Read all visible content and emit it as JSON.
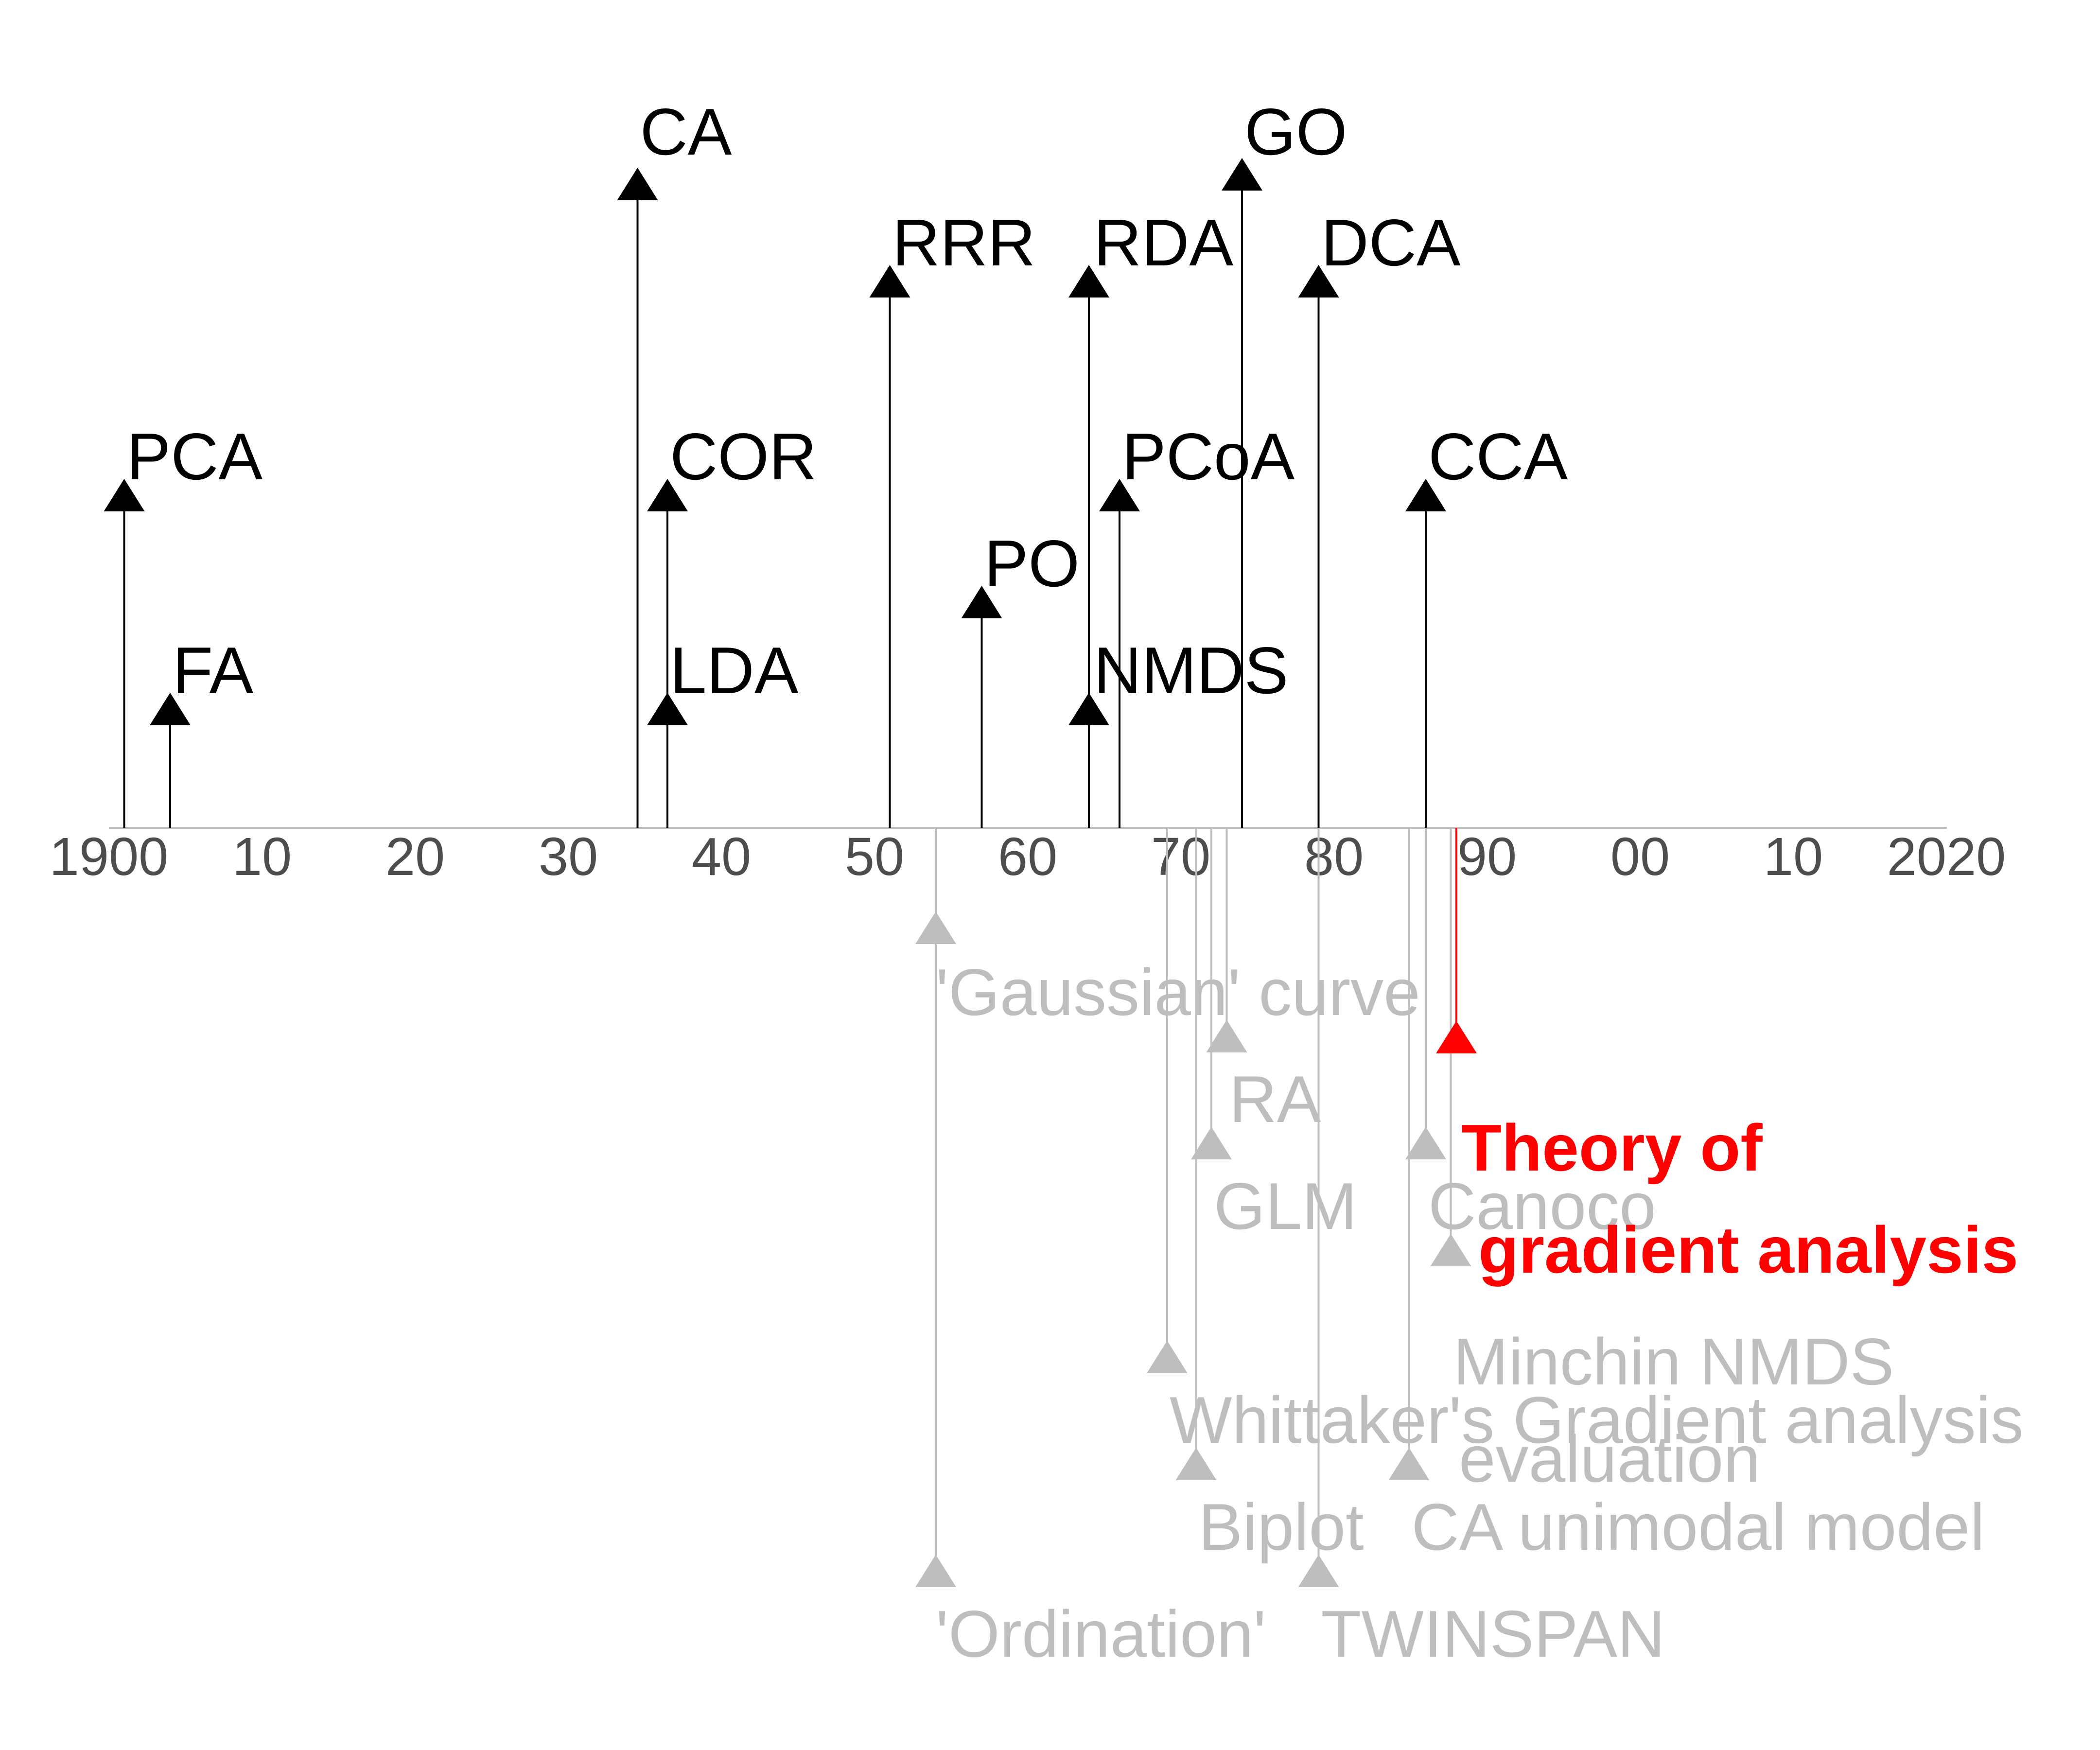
{
  "chart_data": {
    "type": "timeline",
    "title": "",
    "xlabel": "",
    "ylabel": "",
    "xlim": [
      1900,
      2020
    ],
    "tick_labels": [
      "1900",
      "10",
      "20",
      "30",
      "40",
      "50",
      "60",
      "70",
      "80",
      "90",
      "00",
      "10",
      "2020"
    ],
    "tick_values": [
      1900,
      1910,
      1920,
      1930,
      1940,
      1950,
      1960,
      1970,
      1980,
      1990,
      2000,
      2010,
      2020
    ],
    "colors": {
      "methods": "#000000",
      "concepts": "#bebebe",
      "highlight": "#ff0000",
      "axis": "#bebebe",
      "ticks": "#4d4d4d"
    },
    "methods": [
      {
        "label": "PCA",
        "year": 1901
      },
      {
        "label": "FA",
        "year": 1904
      },
      {
        "label": "CA",
        "year": 1935
      },
      {
        "label": "COR",
        "year": 1936
      },
      {
        "label": "LDA",
        "year": 1936
      },
      {
        "label": "RRR",
        "year": 1951
      },
      {
        "label": "PO",
        "year": 1957
      },
      {
        "label": "RDA",
        "year": 1964
      },
      {
        "label": "NMDS",
        "year": 1964
      },
      {
        "label": "PCoA",
        "year": 1966
      },
      {
        "label": "GO",
        "year": 1974
      },
      {
        "label": "DCA",
        "year": 1979
      },
      {
        "label": "CCA",
        "year": 1986
      }
    ],
    "concepts": [
      {
        "label": "'Gaussian' curve",
        "year": 1954
      },
      {
        "label": "RA",
        "year": 1973
      },
      {
        "label": "GLM",
        "year": 1972
      },
      {
        "label": "Canoco",
        "year": 1986
      },
      {
        "label": "Minchin NMDS",
        "year": 1987
      },
      {
        "label": "Whittaker's Gradient analysis",
        "year": 1970
      },
      {
        "label": "evaluation",
        "year": 1970
      },
      {
        "label": "Biplot",
        "year": 1971
      },
      {
        "label": "CA unimodal model",
        "year": 1985
      },
      {
        "label": "'Ordination'",
        "year": 1954
      },
      {
        "label": "TWINSPAN",
        "year": 1979
      }
    ],
    "highlight": {
      "line1": "Theory of",
      "line2": "gradient analysis",
      "year": 1988
    }
  }
}
